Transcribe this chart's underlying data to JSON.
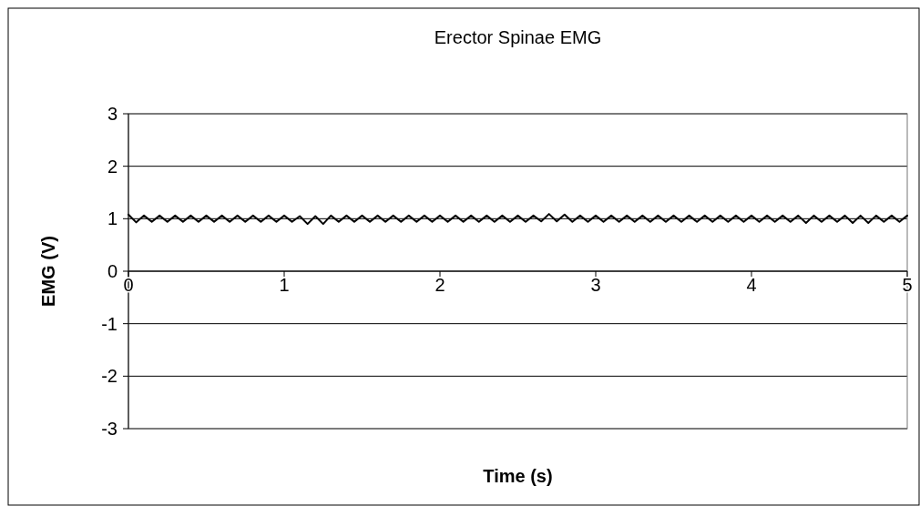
{
  "chart_data": {
    "type": "line",
    "title": "Erector Spinae EMG",
    "xlabel": "Time (s)",
    "ylabel": "EMG (V)",
    "x": [
      0,
      0.05,
      0.1,
      0.15,
      0.2,
      0.25,
      0.3,
      0.35,
      0.4,
      0.45,
      0.5,
      0.55,
      0.6,
      0.65,
      0.7,
      0.75,
      0.8,
      0.85,
      0.9,
      0.95,
      1,
      1.05,
      1.1,
      1.15,
      1.2,
      1.25,
      1.3,
      1.35,
      1.4,
      1.45,
      1.5,
      1.55,
      1.6,
      1.65,
      1.7,
      1.75,
      1.8,
      1.85,
      1.9,
      1.95,
      2,
      2.05,
      2.1,
      2.15,
      2.2,
      2.25,
      2.3,
      2.35,
      2.4,
      2.45,
      2.5,
      2.55,
      2.6,
      2.65,
      2.7,
      2.75,
      2.8,
      2.85,
      2.9,
      2.95,
      3,
      3.05,
      3.1,
      3.15,
      3.2,
      3.25,
      3.3,
      3.35,
      3.4,
      3.45,
      3.5,
      3.55,
      3.6,
      3.65,
      3.7,
      3.75,
      3.8,
      3.85,
      3.9,
      3.95,
      4,
      4.05,
      4.1,
      4.15,
      4.2,
      4.25,
      4.3,
      4.35,
      4.4,
      4.45,
      4.5,
      4.55,
      4.6,
      4.65,
      4.7,
      4.75,
      4.8,
      4.85,
      4.9,
      4.95,
      5
    ],
    "series": [
      {
        "color": "#000000",
        "values": [
          1.08,
          0.93,
          1.06,
          0.94,
          1.06,
          0.94,
          1.06,
          0.94,
          1.06,
          0.94,
          1.06,
          0.94,
          1.06,
          0.94,
          1.06,
          0.94,
          1.06,
          0.94,
          1.06,
          0.94,
          1.06,
          0.94,
          1.05,
          0.9,
          1.05,
          0.9,
          1.06,
          0.94,
          1.06,
          0.94,
          1.06,
          0.94,
          1.06,
          0.94,
          1.06,
          0.94,
          1.06,
          0.94,
          1.06,
          0.94,
          1.06,
          0.94,
          1.06,
          0.94,
          1.06,
          0.94,
          1.06,
          0.94,
          1.06,
          0.94,
          1.06,
          0.94,
          1.06,
          0.95,
          1.09,
          0.95,
          1.08,
          0.94,
          1.06,
          0.94,
          1.06,
          0.94,
          1.06,
          0.94,
          1.06,
          0.94,
          1.06,
          0.94,
          1.06,
          0.94,
          1.06,
          0.94,
          1.06,
          0.94,
          1.06,
          0.94,
          1.06,
          0.94,
          1.06,
          0.94,
          1.06,
          0.94,
          1.06,
          0.94,
          1.06,
          0.94,
          1.06,
          0.92,
          1.06,
          0.94,
          1.06,
          0.94,
          1.06,
          0.92,
          1.06,
          0.92,
          1.06,
          0.94,
          1.06,
          0.94,
          1.06
        ]
      }
    ],
    "xlim": [
      0,
      5
    ],
    "xticks": [
      0,
      1,
      2,
      3,
      4,
      5
    ],
    "ylim": [
      -3,
      3
    ],
    "yticks": [
      -3,
      -2,
      -1,
      0,
      1,
      2,
      3
    ],
    "grid": "y",
    "marker": "none",
    "line_style": "solid"
  }
}
